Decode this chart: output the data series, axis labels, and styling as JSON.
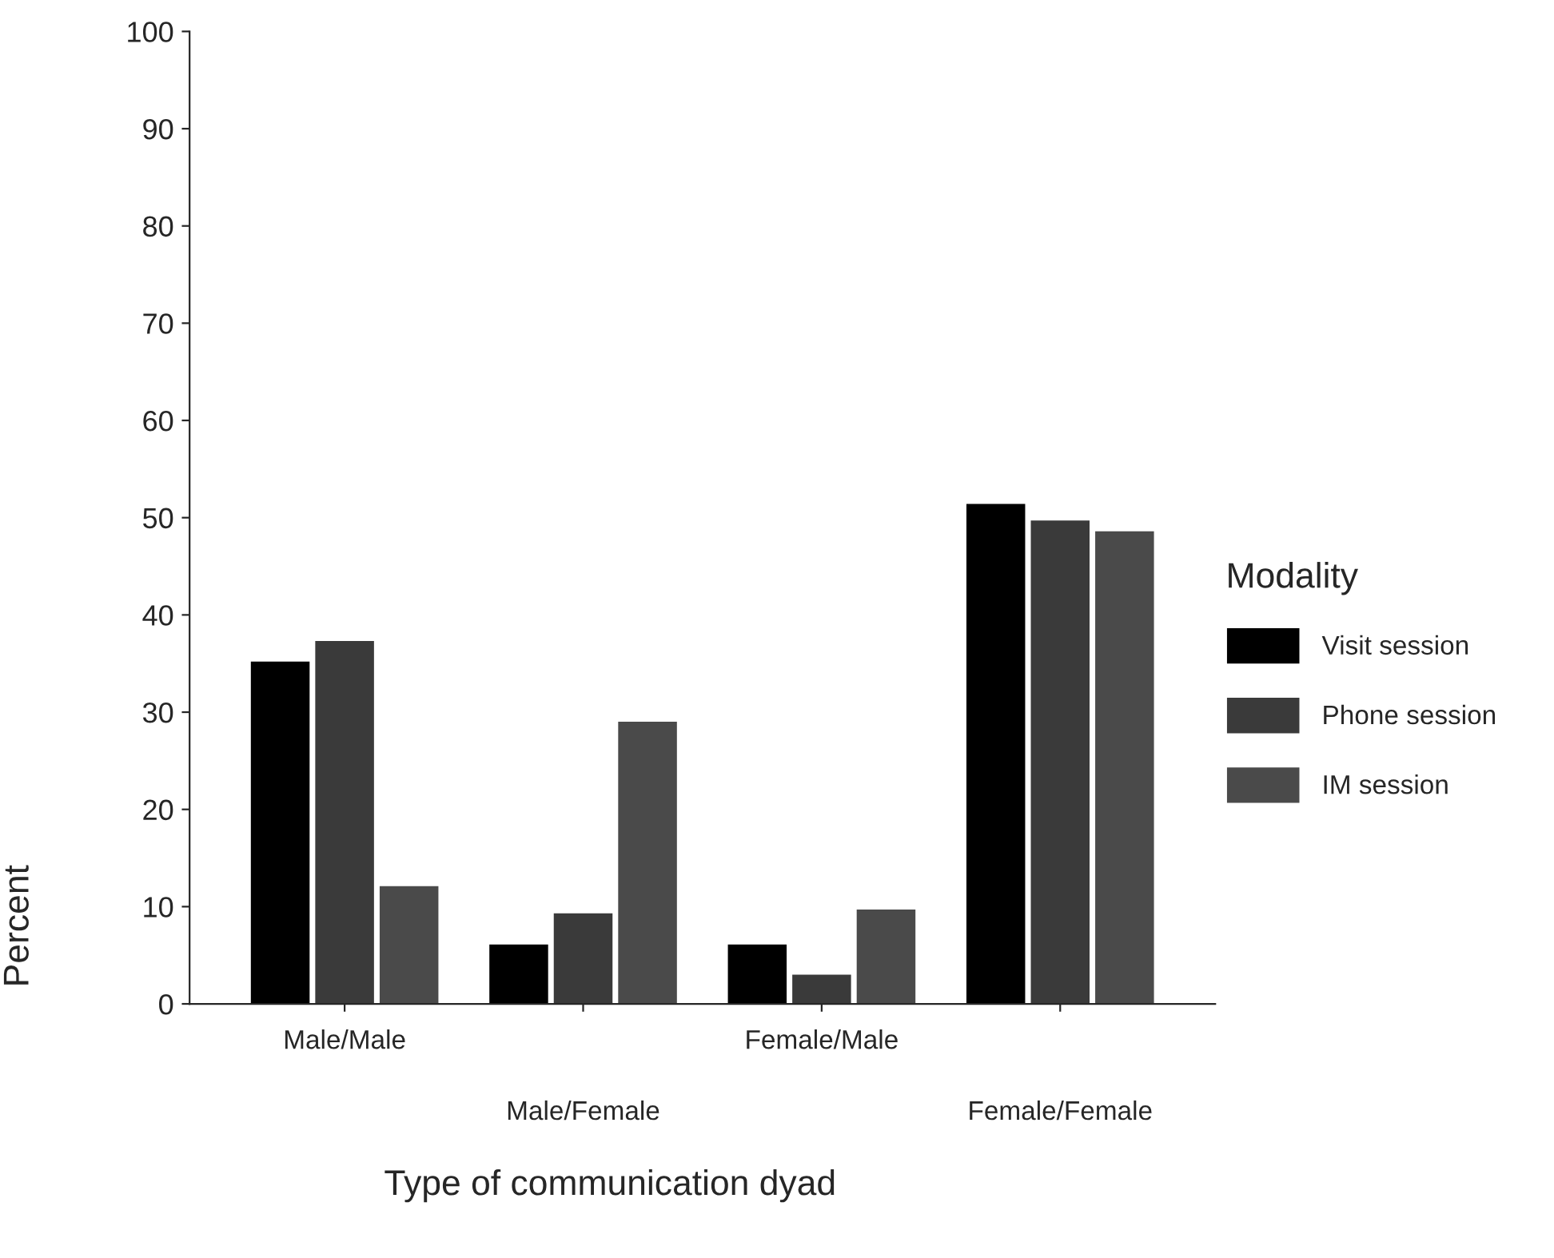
{
  "chart_data": {
    "type": "bar",
    "xlabel": "Type of communication dyad",
    "ylabel": "Percent",
    "legend_title": "Modality",
    "categories": [
      "Male/Male",
      "Male/Female",
      "Female/Male",
      "Female/Female"
    ],
    "series": [
      {
        "name": "Visit session",
        "color": "#000000",
        "values": [
          35.3,
          6.2,
          6.2,
          51.5
        ]
      },
      {
        "name": "Phone session",
        "color": "#3a3a3a",
        "values": [
          37.4,
          9.4,
          3.1,
          49.8
        ]
      },
      {
        "name": "IM session",
        "color": "#4a4a4a",
        "values": [
          12.2,
          29.1,
          9.8,
          48.7
        ]
      }
    ],
    "ylim": [
      0,
      100
    ],
    "yticks": [
      0,
      10,
      20,
      30,
      40,
      50,
      60,
      70,
      80,
      90,
      100
    ],
    "grid": false,
    "legend": "right"
  }
}
